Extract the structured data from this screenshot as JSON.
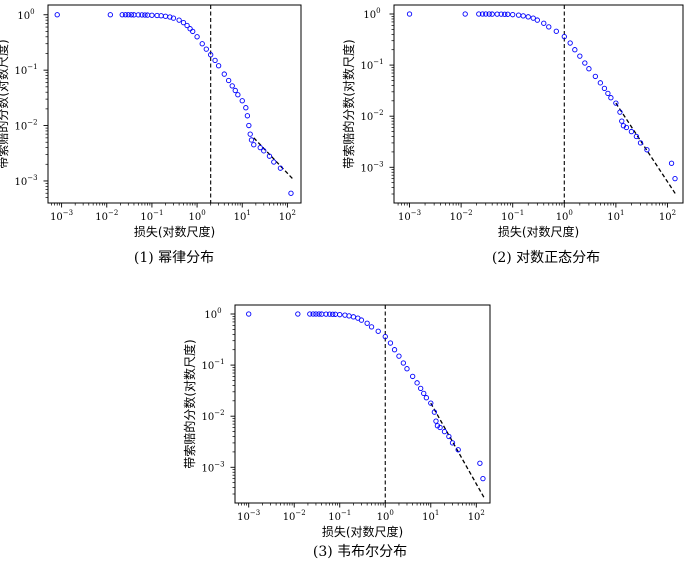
{
  "chart_data": [
    {
      "type": "scatter",
      "caption": "(1) 幂律分布",
      "xlabel": "损失(对数尺度)",
      "ylabel": "带索赔的分数(对数尺度)",
      "xscale": "log",
      "yscale": "log",
      "xlim": [
        0.0005,
        200
      ],
      "ylim": [
        0.0004,
        1.5
      ],
      "xticks": [
        0.001,
        0.01,
        0.1,
        1,
        10,
        100
      ],
      "xtick_labels": [
        [
          "10",
          "−3"
        ],
        [
          "10",
          "−2"
        ],
        [
          "10",
          "−1"
        ],
        [
          "10",
          "0"
        ],
        [
          "10",
          "1"
        ],
        [
          "10",
          "2"
        ]
      ],
      "yticks": [
        0.001,
        0.01,
        0.1,
        1
      ],
      "ytick_labels": [
        [
          "10",
          "−3"
        ],
        [
          "10",
          "−2"
        ],
        [
          "10",
          "−1"
        ],
        [
          "10",
          "0"
        ]
      ],
      "vline_x": 2.0,
      "points": [
        [
          0.0008,
          1.0
        ],
        [
          0.012,
          1.0
        ],
        [
          0.022,
          1.0
        ],
        [
          0.026,
          1.0
        ],
        [
          0.03,
          1.0
        ],
        [
          0.035,
          0.998
        ],
        [
          0.04,
          0.997
        ],
        [
          0.05,
          0.995
        ],
        [
          0.06,
          0.993
        ],
        [
          0.07,
          0.99
        ],
        [
          0.08,
          0.987
        ],
        [
          0.1,
          0.98
        ],
        [
          0.13,
          0.97
        ],
        [
          0.16,
          0.96
        ],
        [
          0.2,
          0.94
        ],
        [
          0.25,
          0.91
        ],
        [
          0.3,
          0.87
        ],
        [
          0.4,
          0.8
        ],
        [
          0.5,
          0.72
        ],
        [
          0.6,
          0.64
        ],
        [
          0.7,
          0.56
        ],
        [
          0.8,
          0.5
        ],
        [
          1.0,
          0.4
        ],
        [
          1.3,
          0.3
        ],
        [
          1.6,
          0.24
        ],
        [
          2.0,
          0.19
        ],
        [
          2.5,
          0.15
        ],
        [
          3.0,
          0.12
        ],
        [
          4.0,
          0.085
        ],
        [
          5.0,
          0.065
        ],
        [
          6.0,
          0.052
        ],
        [
          7.0,
          0.043
        ],
        [
          8.0,
          0.036
        ],
        [
          10.0,
          0.028
        ],
        [
          12.0,
          0.021
        ],
        [
          13.0,
          0.015
        ],
        [
          14.0,
          0.01
        ],
        [
          15.0,
          0.007
        ],
        [
          16.0,
          0.0055
        ],
        [
          18.0,
          0.0045
        ],
        [
          25.0,
          0.004
        ],
        [
          30.0,
          0.0035
        ],
        [
          40.0,
          0.0028
        ],
        [
          50.0,
          0.0022
        ],
        [
          70.0,
          0.0017
        ],
        [
          120.0,
          0.0006
        ]
      ],
      "fit_line": [
        [
          18,
          0.006
        ],
        [
          130,
          0.0011
        ]
      ]
    },
    {
      "type": "scatter",
      "caption": "(2) 对数正态分布",
      "xlabel": "损失(对数尺度)",
      "ylabel": "带索赔的分数(对数尺度)",
      "xscale": "log",
      "yscale": "log",
      "xlim": [
        0.0005,
        200
      ],
      "ylim": [
        0.0002,
        1.5
      ],
      "xticks": [
        0.001,
        0.01,
        0.1,
        1,
        10,
        100
      ],
      "xtick_labels": [
        [
          "10",
          "−3"
        ],
        [
          "10",
          "−2"
        ],
        [
          "10",
          "−1"
        ],
        [
          "10",
          "0"
        ],
        [
          "10",
          "1"
        ],
        [
          "10",
          "2"
        ]
      ],
      "yticks": [
        0.001,
        0.01,
        0.1,
        1
      ],
      "ytick_labels": [
        [
          "10",
          "−3"
        ],
        [
          "10",
          "−2"
        ],
        [
          "10",
          "−1"
        ],
        [
          "10",
          "0"
        ]
      ],
      "vline_x": 1.0,
      "points": [
        [
          0.001,
          1.0
        ],
        [
          0.012,
          1.0
        ],
        [
          0.022,
          1.0
        ],
        [
          0.026,
          1.0
        ],
        [
          0.03,
          1.0
        ],
        [
          0.035,
          0.998
        ],
        [
          0.04,
          0.997
        ],
        [
          0.05,
          0.995
        ],
        [
          0.06,
          0.993
        ],
        [
          0.07,
          0.99
        ],
        [
          0.08,
          0.987
        ],
        [
          0.1,
          0.97
        ],
        [
          0.13,
          0.95
        ],
        [
          0.16,
          0.92
        ],
        [
          0.2,
          0.88
        ],
        [
          0.25,
          0.83
        ],
        [
          0.3,
          0.76
        ],
        [
          0.4,
          0.66
        ],
        [
          0.5,
          0.56
        ],
        [
          0.7,
          0.46
        ],
        [
          1.0,
          0.36
        ],
        [
          1.3,
          0.27
        ],
        [
          1.6,
          0.2
        ],
        [
          2.0,
          0.15
        ],
        [
          2.5,
          0.11
        ],
        [
          3.0,
          0.085
        ],
        [
          4.0,
          0.06
        ],
        [
          5.0,
          0.045
        ],
        [
          6.0,
          0.035
        ],
        [
          7.0,
          0.028
        ],
        [
          8.0,
          0.023
        ],
        [
          10.0,
          0.018
        ],
        [
          12.0,
          0.012
        ],
        [
          13.0,
          0.008
        ],
        [
          14.0,
          0.0065
        ],
        [
          16.0,
          0.006
        ],
        [
          20.0,
          0.005
        ],
        [
          25.0,
          0.004
        ],
        [
          30.0,
          0.003
        ],
        [
          40.0,
          0.0022
        ],
        [
          120.0,
          0.0012
        ],
        [
          140.0,
          0.0006
        ]
      ],
      "fit_line": [
        [
          10,
          0.018
        ],
        [
          150,
          0.00028
        ]
      ]
    },
    {
      "type": "scatter",
      "caption": "(3) 韦布尔分布",
      "xlabel": "损失(对数尺度)",
      "ylabel": "带索赔的分数(对数尺度)",
      "xscale": "log",
      "yscale": "log",
      "xlim": [
        0.0005,
        200
      ],
      "ylim": [
        0.0002,
        1.5
      ],
      "xticks": [
        0.001,
        0.01,
        0.1,
        1,
        10,
        100
      ],
      "xtick_labels": [
        [
          "10",
          "−3"
        ],
        [
          "10",
          "−2"
        ],
        [
          "10",
          "−1"
        ],
        [
          "10",
          "0"
        ],
        [
          "10",
          "1"
        ],
        [
          "10",
          "2"
        ]
      ],
      "yticks": [
        0.001,
        0.01,
        0.1,
        1
      ],
      "ytick_labels": [
        [
          "10",
          "−3"
        ],
        [
          "10",
          "−2"
        ],
        [
          "10",
          "−1"
        ],
        [
          "10",
          "0"
        ]
      ],
      "vline_x": 1.0,
      "points": [
        [
          0.001,
          1.0
        ],
        [
          0.012,
          1.0
        ],
        [
          0.022,
          1.0
        ],
        [
          0.026,
          1.0
        ],
        [
          0.03,
          1.0
        ],
        [
          0.035,
          0.998
        ],
        [
          0.04,
          0.997
        ],
        [
          0.05,
          0.995
        ],
        [
          0.06,
          0.993
        ],
        [
          0.07,
          0.99
        ],
        [
          0.08,
          0.987
        ],
        [
          0.1,
          0.97
        ],
        [
          0.13,
          0.95
        ],
        [
          0.16,
          0.92
        ],
        [
          0.2,
          0.88
        ],
        [
          0.25,
          0.83
        ],
        [
          0.3,
          0.76
        ],
        [
          0.4,
          0.66
        ],
        [
          0.5,
          0.56
        ],
        [
          0.7,
          0.46
        ],
        [
          1.0,
          0.36
        ],
        [
          1.3,
          0.27
        ],
        [
          1.6,
          0.2
        ],
        [
          2.0,
          0.15
        ],
        [
          2.5,
          0.11
        ],
        [
          3.0,
          0.085
        ],
        [
          4.0,
          0.06
        ],
        [
          5.0,
          0.045
        ],
        [
          6.0,
          0.035
        ],
        [
          7.0,
          0.028
        ],
        [
          8.0,
          0.023
        ],
        [
          10.0,
          0.018
        ],
        [
          12.0,
          0.012
        ],
        [
          13.0,
          0.008
        ],
        [
          14.0,
          0.0065
        ],
        [
          16.0,
          0.006
        ],
        [
          20.0,
          0.005
        ],
        [
          25.0,
          0.004
        ],
        [
          30.0,
          0.003
        ],
        [
          40.0,
          0.0022
        ],
        [
          120.0,
          0.0012
        ],
        [
          140.0,
          0.0006
        ]
      ],
      "fit_line": [
        [
          10,
          0.018
        ],
        [
          150,
          0.00025
        ]
      ]
    }
  ],
  "colors": {
    "points": "#0000ff",
    "line": "#000000",
    "frame": "#000000"
  },
  "markers": {
    "shape": "hollow-circle"
  }
}
